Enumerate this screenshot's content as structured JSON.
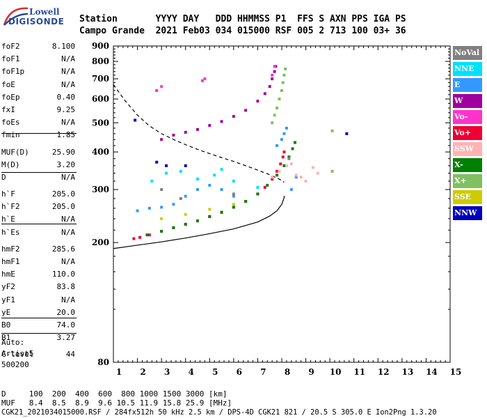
{
  "logo": {
    "line1": "Lowell",
    "line2": "DIGISONDE"
  },
  "header": {
    "line1": "Station       YYYY DAY   DDD HHMMSS P1  FFS S AXN PPS IGA PS",
    "line2": "Campo Grande  2021 Feb03 034 015000 RSF 005 2 713 100 03+ 36"
  },
  "params_group1": [
    {
      "k": "foF2",
      "v": "8.100"
    },
    {
      "k": "foF1",
      "v": "N/A"
    },
    {
      "k": "foF1p",
      "v": "N/A"
    },
    {
      "k": "foE",
      "v": "N/A"
    },
    {
      "k": "foEp",
      "v": "0.40"
    },
    {
      "k": "fxI",
      "v": "9.25"
    },
    {
      "k": "foEs",
      "v": "N/A"
    },
    {
      "k": "fmin",
      "v": "1.85"
    }
  ],
  "params_group2": [
    {
      "k": "MUF(D)",
      "v": "25.90"
    },
    {
      "k": "M(D)",
      "v": "3.20"
    },
    {
      "k": "D",
      "v": "N/A"
    }
  ],
  "params_group3": [
    {
      "k": "h`F",
      "v": "205.0"
    },
    {
      "k": "h`F2",
      "v": "205.0"
    },
    {
      "k": "h`E",
      "v": "N/A"
    },
    {
      "k": "h`Es",
      "v": "N/A"
    }
  ],
  "params_group4": [
    {
      "k": "hmF2",
      "v": "285.6"
    },
    {
      "k": "hmF1",
      "v": "N/A"
    },
    {
      "k": "hmE",
      "v": "110.0"
    },
    {
      "k": "yF2",
      "v": "83.8"
    },
    {
      "k": "yF1",
      "v": "N/A"
    },
    {
      "k": "yE",
      "v": "20.0"
    },
    {
      "k": "B0",
      "v": "74.0"
    },
    {
      "k": "B1",
      "v": "3.27"
    }
  ],
  "params_group5": [
    {
      "k": "C-level",
      "v": "44"
    }
  ],
  "autoscale": {
    "l1": "Auto:",
    "l2": "Artist5",
    "l3": "500200"
  },
  "legend": [
    {
      "label": "NoVal",
      "color": "#808080"
    },
    {
      "label": "NNE",
      "color": "#00e0ff"
    },
    {
      "label": "E",
      "color": "#3399ff"
    },
    {
      "label": "W",
      "color": "#a000a0"
    },
    {
      "label": "Vo-",
      "color": "#ff33cc"
    },
    {
      "label": "Vo+",
      "color": "#ee0033"
    },
    {
      "label": "SSW",
      "color": "#ffb3b3"
    },
    {
      "label": "X-",
      "color": "#008000"
    },
    {
      "label": "X+",
      "color": "#80c060"
    },
    {
      "label": "SSE",
      "color": "#cccc00"
    },
    {
      "label": "NNW",
      "color": "#0000bb"
    }
  ],
  "bottom": {
    "line1": "D     100  200  400  600  800 1000 1500 3000 [km]",
    "line2": "MUF   8.4  8.5  8.9  9.6 10.5 11.9 15.8 25.9 [MHz]",
    "line3": "CGK21_2021034015000.RSF / 284fx512h 50 kHz 2.5 km / DPS-4D CGK21 821 / 20.5 S 305.0 E Ion2Png 1.3.20"
  },
  "chart_data": {
    "type": "scatter",
    "title": "",
    "xlabel": "",
    "ylabel": "",
    "xlim": [
      1,
      15
    ],
    "ylim": [
      80,
      900
    ],
    "y_scale": "log",
    "xticks": [
      "1",
      "2",
      "3",
      "4",
      "5",
      "6",
      "7",
      "8",
      "9",
      "10",
      "11",
      "12",
      "13",
      "14",
      "15"
    ],
    "yticks": [
      "80",
      "200",
      "300",
      "400",
      "500",
      "600",
      "700",
      "800",
      "900"
    ],
    "series": [
      {
        "name": "Vo+",
        "color": "#ee0033",
        "points": [
          [
            1.85,
            206
          ],
          [
            2.1,
            208
          ],
          [
            2.5,
            212
          ],
          [
            3.0,
            218
          ],
          [
            3.5,
            224
          ],
          [
            4.0,
            230
          ],
          [
            4.5,
            236
          ],
          [
            5.0,
            244
          ],
          [
            5.5,
            252
          ],
          [
            6.0,
            262
          ],
          [
            6.5,
            274
          ],
          [
            7.0,
            290
          ],
          [
            7.3,
            305
          ],
          [
            7.6,
            325
          ],
          [
            7.8,
            345
          ],
          [
            7.95,
            365
          ],
          [
            8.05,
            385
          ],
          [
            8.1,
            400
          ]
        ]
      },
      {
        "name": "X-",
        "color": "#008000",
        "points": [
          [
            2.4,
            212
          ],
          [
            3.0,
            218
          ],
          [
            3.5,
            224
          ],
          [
            4.0,
            230
          ],
          [
            4.5,
            236
          ],
          [
            5.0,
            244
          ],
          [
            5.5,
            252
          ],
          [
            6.0,
            262
          ],
          [
            6.5,
            274
          ],
          [
            7.0,
            290
          ],
          [
            7.4,
            310
          ],
          [
            7.8,
            335
          ],
          [
            8.1,
            360
          ],
          [
            8.3,
            385
          ],
          [
            8.45,
            410
          ],
          [
            8.55,
            430
          ]
        ]
      },
      {
        "name": "X+",
        "color": "#80c060",
        "points": [
          [
            7.6,
            500
          ],
          [
            7.7,
            530
          ],
          [
            7.8,
            560
          ],
          [
            7.9,
            600
          ],
          [
            8.0,
            640
          ],
          [
            8.05,
            680
          ],
          [
            8.1,
            720
          ],
          [
            8.15,
            755
          ],
          [
            10.1,
            470
          ],
          [
            10.1,
            345
          ]
        ]
      },
      {
        "name": "W",
        "color": "#a000a0",
        "points": [
          [
            3.0,
            440
          ],
          [
            3.5,
            455
          ],
          [
            4.0,
            465
          ],
          [
            4.5,
            475
          ],
          [
            5.0,
            490
          ],
          [
            5.5,
            505
          ],
          [
            6.0,
            525
          ],
          [
            6.5,
            550
          ],
          [
            7.0,
            590
          ],
          [
            7.3,
            625
          ],
          [
            7.5,
            660
          ],
          [
            7.6,
            700
          ],
          [
            7.7,
            740
          ],
          [
            7.75,
            770
          ]
        ]
      },
      {
        "name": "E",
        "color": "#3399ff",
        "points": [
          [
            2.0,
            255
          ],
          [
            2.5,
            260
          ],
          [
            3.0,
            262
          ],
          [
            3.5,
            268
          ],
          [
            4.0,
            285
          ],
          [
            4.5,
            300
          ],
          [
            5.0,
            310
          ],
          [
            5.5,
            300
          ],
          [
            6.0,
            285
          ],
          [
            7.8,
            420
          ],
          [
            8.0,
            440
          ],
          [
            8.1,
            460
          ],
          [
            8.2,
            480
          ],
          [
            8.4,
            300
          ],
          [
            8.6,
            330
          ]
        ]
      },
      {
        "name": "NNE",
        "color": "#00e0ff",
        "points": [
          [
            2.6,
            320
          ],
          [
            3.2,
            340
          ],
          [
            3.8,
            345
          ],
          [
            4.5,
            325
          ],
          [
            5.2,
            335
          ],
          [
            5.5,
            350
          ],
          [
            6.0,
            320
          ],
          [
            7.0,
            305
          ]
        ]
      },
      {
        "name": "SSW",
        "color": "#ffb3b3",
        "points": [
          [
            7.6,
            330
          ],
          [
            7.9,
            345
          ],
          [
            8.2,
            360
          ],
          [
            8.4,
            365
          ],
          [
            8.6,
            335
          ],
          [
            8.8,
            330
          ],
          [
            9.0,
            320
          ],
          [
            9.3,
            355
          ],
          [
            9.5,
            340
          ]
        ]
      },
      {
        "name": "Vo-",
        "color": "#ff33cc",
        "points": [
          [
            2.8,
            640
          ],
          [
            3.0,
            660
          ],
          [
            4.7,
            690
          ],
          [
            4.8,
            700
          ],
          [
            7.6,
            720
          ],
          [
            7.7,
            770
          ]
        ]
      },
      {
        "name": "NNW",
        "color": "#0000bb",
        "points": [
          [
            1.9,
            510
          ],
          [
            2.8,
            370
          ],
          [
            3.2,
            360
          ],
          [
            4.0,
            360
          ],
          [
            10.7,
            460
          ]
        ]
      },
      {
        "name": "SSE",
        "color": "#cccc00",
        "points": [
          [
            3.0,
            240
          ],
          [
            4.0,
            248
          ],
          [
            5.0,
            258
          ],
          [
            6.0,
            268
          ]
        ]
      },
      {
        "name": "NoVal",
        "color": "#808080",
        "points": [
          [
            3.0,
            300
          ],
          [
            3.8,
            280
          ],
          [
            6.0,
            290
          ],
          [
            8.3,
            380
          ]
        ]
      }
    ],
    "profile_line": [
      [
        1.0,
        191
      ],
      [
        2.0,
        196
      ],
      [
        3.0,
        201
      ],
      [
        4.0,
        207
      ],
      [
        5.0,
        214
      ],
      [
        6.0,
        222
      ],
      [
        7.0,
        234
      ],
      [
        7.5,
        245
      ],
      [
        7.8,
        255
      ],
      [
        8.0,
        268
      ],
      [
        8.1,
        282
      ],
      [
        8.1,
        286
      ]
    ],
    "dashed_curve": [
      [
        1.0,
        670
      ],
      [
        1.5,
        590
      ],
      [
        2.0,
        530
      ],
      [
        2.5,
        488
      ],
      [
        3.0,
        460
      ],
      [
        3.5,
        440
      ],
      [
        4.0,
        423
      ],
      [
        4.5,
        408
      ],
      [
        5.0,
        395
      ],
      [
        5.5,
        383
      ],
      [
        6.0,
        372
      ],
      [
        6.5,
        360
      ],
      [
        7.0,
        348
      ],
      [
        7.5,
        336
      ],
      [
        8.0,
        322
      ],
      [
        8.1,
        317
      ]
    ]
  }
}
